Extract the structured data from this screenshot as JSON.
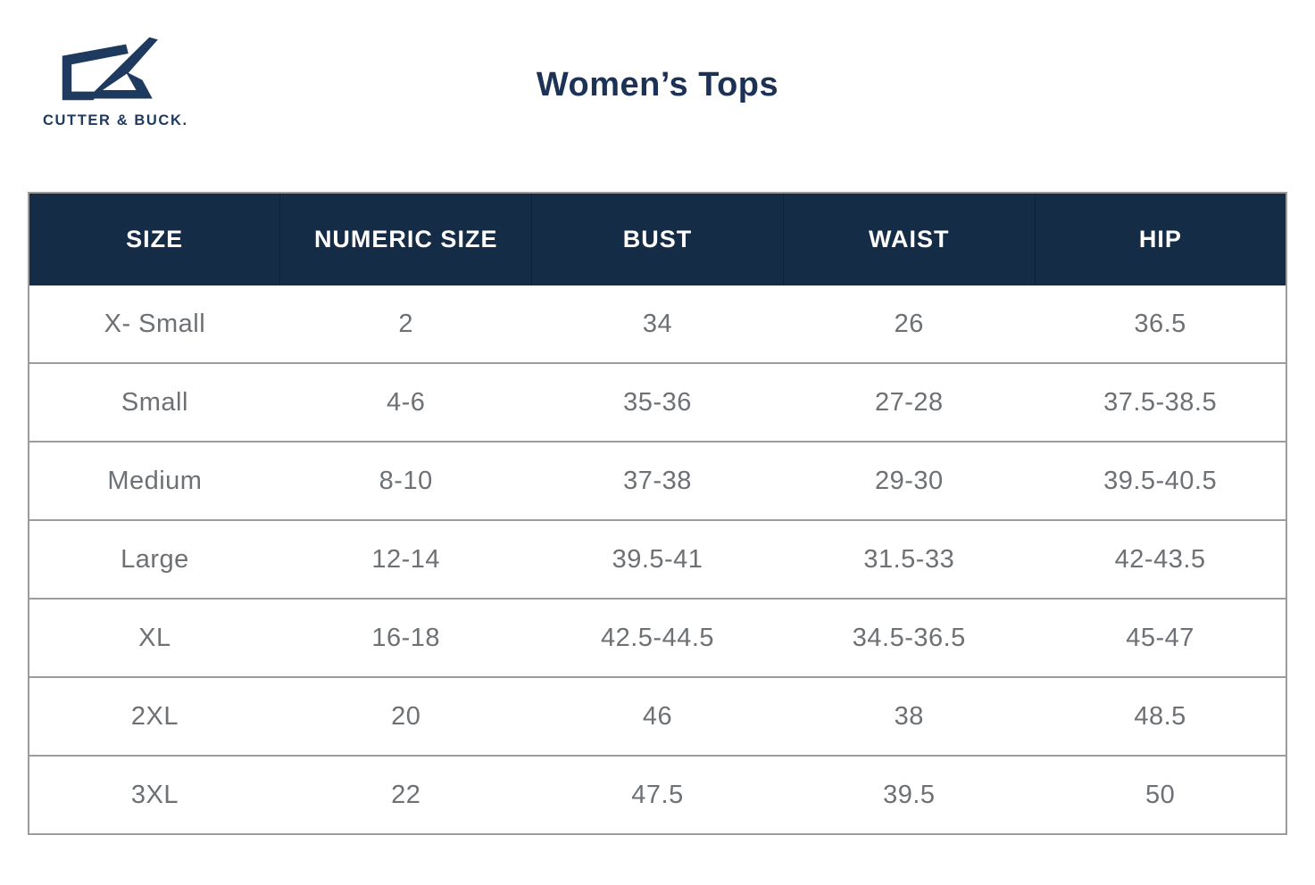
{
  "brand": {
    "wordmark": "CUTTER & BUCK.",
    "logo_icon": "cb-monogram-icon"
  },
  "page": {
    "title": "Women’s Tops"
  },
  "colors": {
    "header_bg": "#152c47",
    "header_text": "#ffffff",
    "title_text": "#1c3156",
    "body_text": "#6d7175",
    "row_border": "#9b9b9b",
    "logo": "#1e3a5f"
  },
  "chart_data": {
    "type": "table",
    "title": "Women’s Tops",
    "columns": [
      "SIZE",
      "NUMERIC SIZE",
      "BUST",
      "WAIST",
      "HIP"
    ],
    "rows": [
      [
        "X- Small",
        "2",
        "34",
        "26",
        "36.5"
      ],
      [
        "Small",
        "4-6",
        "35-36",
        "27-28",
        "37.5-38.5"
      ],
      [
        "Medium",
        "8-10",
        "37-38",
        "29-30",
        "39.5-40.5"
      ],
      [
        "Large",
        "12-14",
        "39.5-41",
        "31.5-33",
        "42-43.5"
      ],
      [
        "XL",
        "16-18",
        "42.5-44.5",
        "34.5-36.5",
        "45-47"
      ],
      [
        "2XL",
        "20",
        "46",
        "38",
        "48.5"
      ],
      [
        "3XL",
        "22",
        "47.5",
        "39.5",
        "50"
      ]
    ]
  }
}
